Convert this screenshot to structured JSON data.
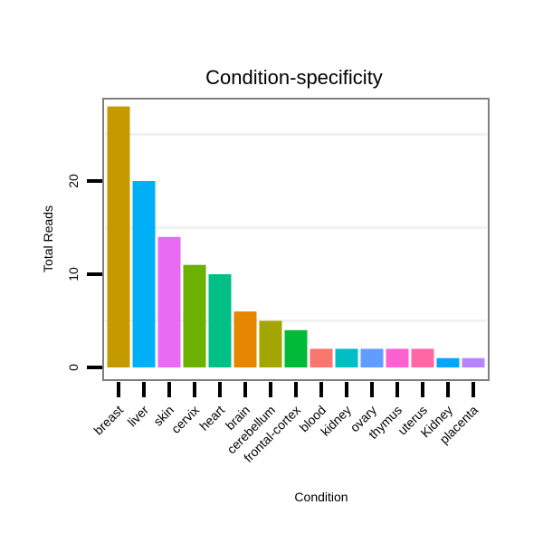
{
  "chart_data": {
    "type": "bar",
    "title": "Condition-specificity",
    "xlabel": "Condition",
    "ylabel": "Total Reads",
    "categories": [
      "breast",
      "liver",
      "skin",
      "cervix",
      "heart",
      "brain",
      "cerebellum",
      "frontal-cortex",
      "blood",
      "kidney",
      "ovary",
      "thymus",
      "uterus",
      "Kidney",
      "placenta"
    ],
    "values": [
      28,
      20,
      14,
      11,
      10,
      6,
      5,
      4,
      2,
      2,
      2,
      2,
      2,
      1,
      1
    ],
    "colors": [
      "#C49A00",
      "#00B0F6",
      "#E76BF3",
      "#6BB100",
      "#00C087",
      "#E58700",
      "#A3A500",
      "#00BA38",
      "#F8766D",
      "#00BFC4",
      "#619CFF",
      "#FD61D1",
      "#FF67A4",
      "#00A5FF",
      "#B983FF"
    ],
    "yticks": [
      0,
      10,
      20
    ],
    "ylim": [
      -1,
      29.5
    ],
    "grid": true,
    "legend": "none"
  }
}
